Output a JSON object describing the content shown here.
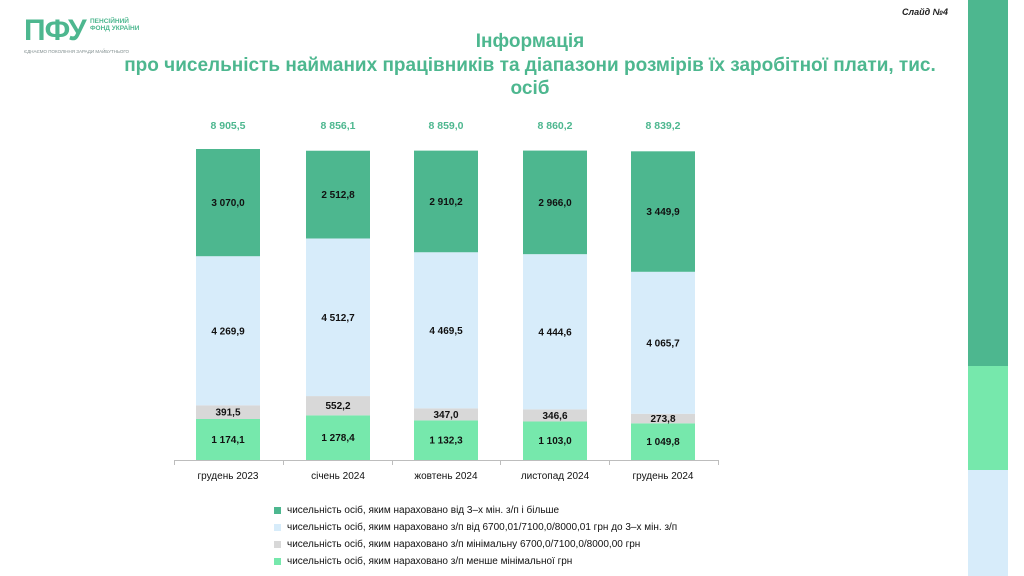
{
  "header": {
    "logo_text": "ПФУ",
    "logo_sub": "ПЕНСІЙНИЙ ФОНД УКРАЇНИ",
    "logo_tagline": "ЄДНАЄМО ПОКОЛІННЯ ЗАРАДИ МАЙБУТНЬОГО",
    "slide_label": "Слайд №4",
    "title_line1": "Інформація",
    "title_line2": "про чисельність найманих працівників та діапазони розмірів їх заробітної плати, тис. осіб"
  },
  "colors": {
    "title": "#4db78f",
    "series": [
      "#4db78f",
      "#d7ecfa",
      "#d8d8d8",
      "#76e8ac"
    ],
    "total_label": "#4db78f",
    "side_bar": [
      "#4db78f",
      "#76e8ac",
      "#d7ecfa"
    ]
  },
  "chart_data": {
    "type": "bar",
    "stacked": true,
    "categories": [
      "грудень 2023",
      "січень 2024",
      "жовтень 2024",
      "листопад 2024",
      "грудень 2024"
    ],
    "series": [
      {
        "name": "чисельність осіб, яким нараховано від 3–х мін. з/п і більше",
        "values": [
          3070.0,
          2512.8,
          2910.2,
          2966.0,
          3449.9
        ],
        "labels": [
          "3 070,0",
          "2 512,8",
          "2 910,2",
          "2 966,0",
          "3 449,9"
        ]
      },
      {
        "name": "чисельність осіб, яким нараховано з/п від 6700,01/7100,0/8000,01 грн до 3–х мін. з/п",
        "values": [
          4269.9,
          4512.7,
          4469.5,
          4444.6,
          4065.7
        ],
        "labels": [
          "4 269,9",
          "4 512,7",
          "4 469,5",
          "4 444,6",
          "4 065,7"
        ]
      },
      {
        "name": "чисельність осіб, яким нараховано з/п  мінімальну 6700,0/7100,0/8000,00 грн",
        "values": [
          391.5,
          552.2,
          347.0,
          346.6,
          273.8
        ],
        "labels": [
          "391,5",
          "552,2",
          "347,0",
          "346,6",
          "273,8"
        ]
      },
      {
        "name": "чисельність осіб, яким нараховано з/п менше мінімальної грн",
        "values": [
          1174.1,
          1278.4,
          1132.3,
          1103.0,
          1049.8
        ],
        "labels": [
          "1 174,1",
          "1 278,4",
          "1 132,3",
          "1 103,0",
          "1 049,8"
        ]
      }
    ],
    "totals": [
      8905.5,
      8856.1,
      8859.0,
      8860.2,
      8839.2
    ],
    "total_labels": [
      "8 905,5",
      "8 856,1",
      "8 859,0",
      "8 860,2",
      "8 839,2"
    ],
    "title": "",
    "xlabel": "",
    "ylabel": "",
    "grid": false,
    "legend": "bottom"
  }
}
